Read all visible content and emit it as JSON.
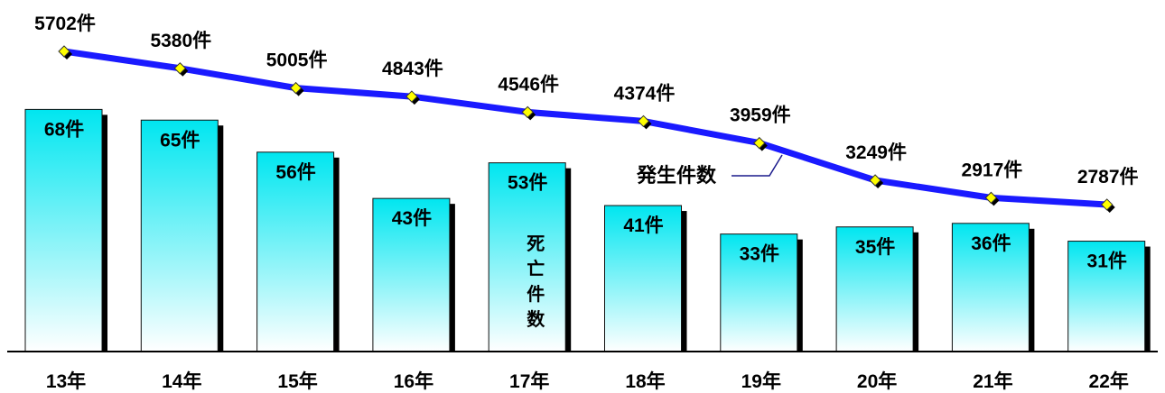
{
  "chart_data": {
    "type": "bar",
    "categories": [
      "13年",
      "14年",
      "15年",
      "16年",
      "17年",
      "18年",
      "19年",
      "20年",
      "21年",
      "22年"
    ],
    "series": [
      {
        "name": "死亡件数",
        "type": "bar",
        "values": [
          68,
          65,
          56,
          43,
          53,
          41,
          33,
          35,
          36,
          31
        ],
        "labels": [
          "68件",
          "65件",
          "56件",
          "43件",
          "53件",
          "41件",
          "33件",
          "35件",
          "36件",
          "31件"
        ]
      },
      {
        "name": "発生件数",
        "type": "line",
        "values": [
          5702,
          5380,
          5005,
          4843,
          4546,
          4374,
          3959,
          3249,
          2917,
          2787
        ],
        "labels": [
          "5702件",
          "5380件",
          "5005件",
          "4843件",
          "4546件",
          "4374件",
          "3959件",
          "3249件",
          "2917件",
          "2787件"
        ]
      }
    ],
    "annotations": {
      "bar_series_label": "死亡件数",
      "line_series_label": "発生件数"
    },
    "colors": {
      "bar_top": "#00e6f0",
      "bar_bottom": "#ffffff",
      "bar_shadow": "#000000",
      "line": "#1a1aff",
      "marker": "#ffff00",
      "line_label": "#1a1aff"
    }
  }
}
